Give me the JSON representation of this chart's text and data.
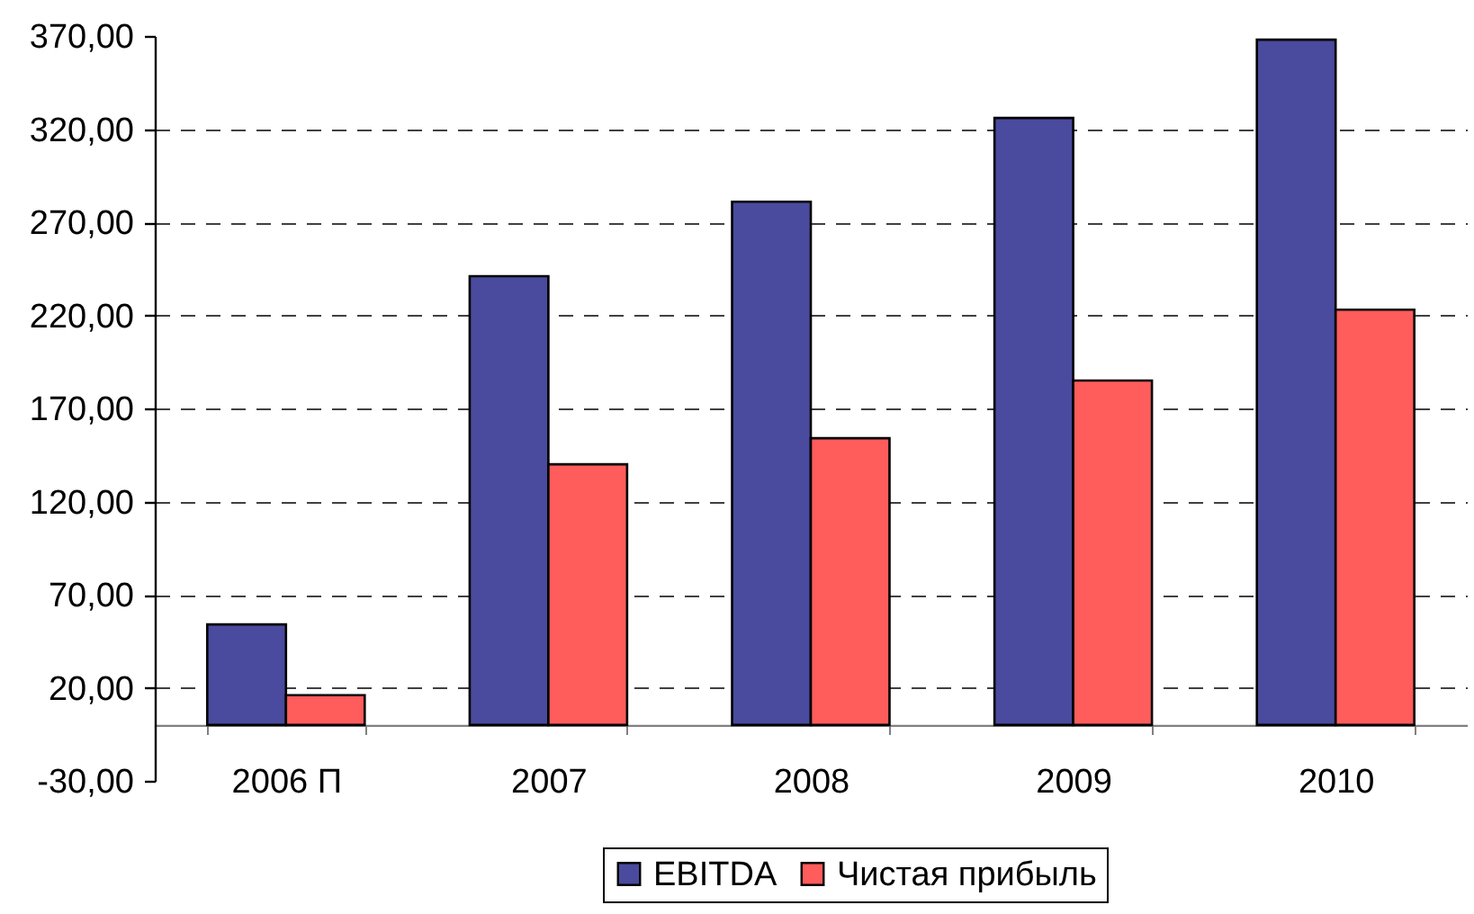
{
  "chart_data": {
    "type": "bar",
    "categories": [
      "2006 П",
      "2007",
      "2008",
      "2009",
      "2010"
    ],
    "series": [
      {
        "name": "EBITDA",
        "color": "#4a4a9e",
        "values": [
          54,
          241,
          281,
          326,
          368
        ]
      },
      {
        "name": "Чистая прибыль",
        "color": "#ff5c5c",
        "values": [
          16,
          140,
          154,
          185,
          223
        ]
      }
    ],
    "ylim": [
      -30,
      370
    ],
    "yticks": [
      {
        "value": -30,
        "label": "-30,00"
      },
      {
        "value": 20,
        "label": "20,00"
      },
      {
        "value": 70,
        "label": "70,00"
      },
      {
        "value": 120,
        "label": "120,00"
      },
      {
        "value": 170,
        "label": "170,00"
      },
      {
        "value": 220,
        "label": "220,00"
      },
      {
        "value": 270,
        "label": "270,00"
      },
      {
        "value": 320,
        "label": "320,00"
      },
      {
        "value": 370,
        "label": "370,00"
      }
    ],
    "grid": "y",
    "legend": "bottom"
  }
}
